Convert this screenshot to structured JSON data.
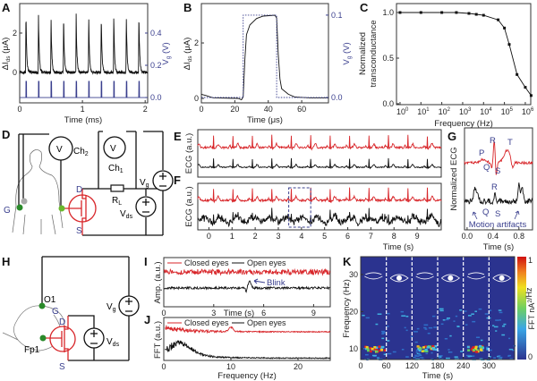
{
  "panel_labels": {
    "A": "A",
    "B": "B",
    "C": "C",
    "D": "D",
    "E": "E",
    "F": "F",
    "G": "G",
    "H": "H",
    "I": "I",
    "J": "J",
    "K": "K"
  },
  "colors": {
    "trace": "#111111",
    "red": "#d8262a",
    "blue": "#3a3f8e",
    "spectrogram_bg": "#2b338f"
  },
  "chart_data": {
    "A": {
      "type": "line",
      "xlabel": "Time (ms)",
      "ylabel": {
        "main": "ΔI",
        "sub": "ds",
        "unit": " (μA)"
      },
      "y2label": {
        "main": "V",
        "sub": "g",
        "unit": " (V)"
      },
      "xlim": [
        0,
        2.04
      ],
      "ylim": [
        -1.55,
        3.5
      ],
      "y2lim": [
        -0.033,
        0.583
      ],
      "xticks": [
        {
          "v": 0,
          "t": "0"
        },
        {
          "v": 1,
          "t": "1"
        },
        {
          "v": 2,
          "t": "2"
        }
      ],
      "yticks": [
        {
          "v": 0,
          "t": "0"
        },
        {
          "v": 2,
          "t": "2"
        }
      ],
      "y2ticks": [
        {
          "v": 0,
          "t": "0.0"
        },
        {
          "v": 0.2,
          "t": "0.2"
        },
        {
          "v": 0.4,
          "t": "0.4"
        }
      ],
      "series": [
        {
          "name": "ΔIds",
          "axis": "left",
          "spike_times_ms": [
            0.1,
            0.3,
            0.5,
            0.7,
            0.9,
            1.1,
            1.3,
            1.5,
            1.7,
            1.9
          ],
          "peak_uA": [
            3.0,
            2.9,
            2.85,
            2.9,
            2.95,
            3.0,
            2.9,
            2.7,
            2.9,
            2.95
          ]
        },
        {
          "name": "Vg",
          "axis": "right",
          "pulse_times_ms": [
            0.1,
            0.3,
            0.5,
            0.7,
            0.9,
            1.1,
            1.3,
            1.5,
            1.7,
            1.9
          ],
          "amplitude_V": 0.1
        }
      ]
    },
    "B": {
      "type": "line",
      "xlabel": "Time (μs)",
      "ylabel": {
        "main": "ΔI",
        "sub": "ds",
        "unit": " (μA)"
      },
      "y2label": {
        "main": "V",
        "sub": "g",
        "unit": " (V)"
      },
      "xlim": [
        0,
        76
      ],
      "ylim": [
        -0.16,
        3.42
      ],
      "y2lim": [
        -0.0065,
        0.114
      ],
      "xticks": [
        {
          "v": 0,
          "t": "0"
        },
        {
          "v": 20,
          "t": "20"
        },
        {
          "v": 40,
          "t": "40"
        },
        {
          "v": 60,
          "t": "60"
        }
      ],
      "yticks": [
        {
          "v": 0,
          "t": "0"
        },
        {
          "v": 2,
          "t": "2"
        }
      ],
      "y2ticks": [
        {
          "v": 0,
          "t": "0.0"
        },
        {
          "v": 0.1,
          "t": "0.1"
        }
      ],
      "series": [
        {
          "name": "ΔIds",
          "axis": "left",
          "points": [
            [
              0,
              0.15
            ],
            [
              3,
              0.1
            ],
            [
              7,
              0.02
            ],
            [
              22,
              0.0
            ],
            [
              24,
              -0.05
            ],
            [
              25,
              0.05
            ],
            [
              26,
              1.4
            ],
            [
              27,
              2.3
            ],
            [
              29,
              2.65
            ],
            [
              33,
              2.88
            ],
            [
              37,
              2.97
            ],
            [
              44,
              3.0
            ],
            [
              45,
              2.9
            ],
            [
              46,
              1.6
            ],
            [
              47,
              0.7
            ],
            [
              48,
              0.35
            ],
            [
              52,
              0.15
            ],
            [
              56,
              0.05
            ],
            [
              65,
              0.02
            ],
            [
              76,
              0.02
            ]
          ]
        },
        {
          "name": "Vg",
          "axis": "right",
          "style": "dotted",
          "points": [
            [
              0,
              0
            ],
            [
              25,
              0
            ],
            [
              25,
              0.1
            ],
            [
              45,
              0.1
            ],
            [
              45,
              0
            ],
            [
              76,
              0
            ]
          ]
        }
      ]
    },
    "C": {
      "type": "line",
      "xlabel": "Frequency (Hz)",
      "ylabel_lines": [
        "Normalized",
        "transconductance"
      ],
      "xscale": "log",
      "xlim_log10": [
        -0.17,
        6.26
      ],
      "ylim": [
        -0.01,
        1.098
      ],
      "xticks": [
        {
          "e": 0,
          "t": "10",
          "s": "0"
        },
        {
          "e": 1,
          "t": "10",
          "s": "1"
        },
        {
          "e": 2,
          "t": "10",
          "s": "2"
        },
        {
          "e": 3,
          "t": "10",
          "s": "3"
        },
        {
          "e": 4,
          "t": "10",
          "s": "4"
        },
        {
          "e": 5,
          "t": "10",
          "s": "5"
        },
        {
          "e": 6,
          "t": "10",
          "s": "6"
        }
      ],
      "yticks": [
        {
          "v": 0,
          "t": "0.0"
        },
        {
          "v": 0.5,
          "t": "0.5"
        },
        {
          "v": 1,
          "t": "1.0"
        }
      ],
      "x": [
        1,
        10,
        100,
        500,
        2000,
        4500,
        10000,
        50000,
        100000,
        170000,
        400000,
        1000000,
        1900000
      ],
      "y": [
        1.0,
        1.0,
        1.0,
        1.0,
        0.99,
        0.98,
        0.97,
        0.92,
        0.83,
        0.65,
        0.32,
        0.18,
        0.09
      ]
    },
    "E": {
      "type": "line",
      "ylabel": "ECG (a.u.)",
      "xlim": [
        -0.48,
        10.04
      ],
      "beat_period_s": 0.84,
      "series": [
        {
          "name": "device",
          "color": "red"
        },
        {
          "name": "reference",
          "color": "black"
        }
      ]
    },
    "F": {
      "type": "line",
      "ylabel": "ECG (a.u.)",
      "xlabel": "Time (s)",
      "xlim": [
        -0.48,
        10.04
      ],
      "xticks": [
        {
          "v": 0,
          "t": "0"
        },
        {
          "v": 1,
          "t": "1"
        },
        {
          "v": 2,
          "t": "2"
        },
        {
          "v": 3,
          "t": "3"
        },
        {
          "v": 4,
          "t": "4"
        },
        {
          "v": 5,
          "t": "5"
        },
        {
          "v": 6,
          "t": "6"
        },
        {
          "v": 7,
          "t": "7"
        },
        {
          "v": 8,
          "t": "8"
        },
        {
          "v": 9,
          "t": "9"
        }
      ],
      "highlight_window_s": [
        3.45,
        4.4
      ],
      "beat_period_s": 0.84,
      "series": [
        {
          "name": "device",
          "color": "red"
        },
        {
          "name": "reference",
          "color": "black",
          "motion_artifacts": true
        }
      ]
    },
    "G": {
      "type": "line",
      "ylabel": "Normalized ECG",
      "xlabel": "Time (s)",
      "xlim": [
        -0.04,
        1.01
      ],
      "xticks": [
        {
          "v": 0,
          "t": "0.0"
        },
        {
          "v": 0.4,
          "t": "0.4"
        },
        {
          "v": 0.8,
          "t": "0.8"
        }
      ],
      "annotations_red": [
        "P",
        "Q",
        "R",
        "S",
        "T"
      ],
      "annotations_black": [
        "R",
        "Q",
        "S"
      ],
      "artifact_label": "Motion artifacts"
    },
    "I": {
      "type": "line",
      "ylabel": "Amp. (a.u.)",
      "xlabel": "Time (s)",
      "xlim": [
        0,
        10.0
      ],
      "xticks": [
        {
          "v": 0,
          "t": "0"
        },
        {
          "v": 3,
          "t": "3"
        },
        {
          "v": 6,
          "t": "6"
        },
        {
          "v": 9,
          "t": "9"
        }
      ],
      "legend": [
        "Closed eyes",
        "Open eyes"
      ],
      "legend_position": "top",
      "annotation": "Blink",
      "blink_time_s": 5.0
    },
    "J": {
      "type": "line",
      "ylabel": "FFT (a.u.)",
      "xlabel": "Frequency (Hz)",
      "xlim": [
        0,
        24.8
      ],
      "xticks": [
        {
          "v": 0,
          "t": "0"
        },
        {
          "v": 10,
          "t": "10"
        },
        {
          "v": 20,
          "t": "20"
        }
      ],
      "legend": [
        "Closed eyes",
        "Open eyes"
      ],
      "legend_position": "top",
      "alpha_peak_hz": 10
    },
    "K": {
      "type": "heatmap",
      "ylabel": "Frequency (Hz)",
      "xlabel": "Time (s)",
      "xlim": [
        0,
        360
      ],
      "ylim": [
        7.1,
        34.8
      ],
      "xticks": [
        {
          "v": 0,
          "t": "0"
        },
        {
          "v": 60,
          "t": "60"
        },
        {
          "v": 120,
          "t": "120"
        },
        {
          "v": 180,
          "t": "180"
        },
        {
          "v": 240,
          "t": "240"
        },
        {
          "v": 300,
          "t": "300"
        }
      ],
      "yticks": [
        {
          "v": 10,
          "t": "10"
        },
        {
          "v": 20,
          "t": "20"
        },
        {
          "v": 30,
          "t": "30"
        }
      ],
      "segments": [
        {
          "start": 0,
          "end": 60,
          "eyes": "closed"
        },
        {
          "start": 60,
          "end": 120,
          "eyes": "open"
        },
        {
          "start": 120,
          "end": 180,
          "eyes": "closed"
        },
        {
          "start": 180,
          "end": 240,
          "eyes": "open"
        },
        {
          "start": 240,
          "end": 300,
          "eyes": "closed"
        },
        {
          "start": 300,
          "end": 360,
          "eyes": "open"
        }
      ],
      "alpha_band_hz": 10,
      "colorbar": {
        "label_main": "FFT nA",
        "label_sup": "2",
        "label_tail": "/Hz",
        "min": "0",
        "max": "1"
      }
    }
  },
  "diagrams": {
    "D": {
      "ch2": "Ch",
      "ch2_sub": "2",
      "ch1": "Ch",
      "ch1_sub": "1",
      "voltmeter": "V",
      "vg": "V",
      "vg_sub": "g",
      "rl": "R",
      "rl_sub": "L",
      "vds": "V",
      "vds_sub": "ds",
      "drain": "D",
      "source": "S",
      "gate": "G"
    },
    "H": {
      "o1": "O1",
      "fp1": "Fp1",
      "gate": "G",
      "drain": "D",
      "source": "S",
      "vg": "V",
      "vg_sub": "g",
      "vds": "V",
      "vds_sub": "ds"
    }
  }
}
